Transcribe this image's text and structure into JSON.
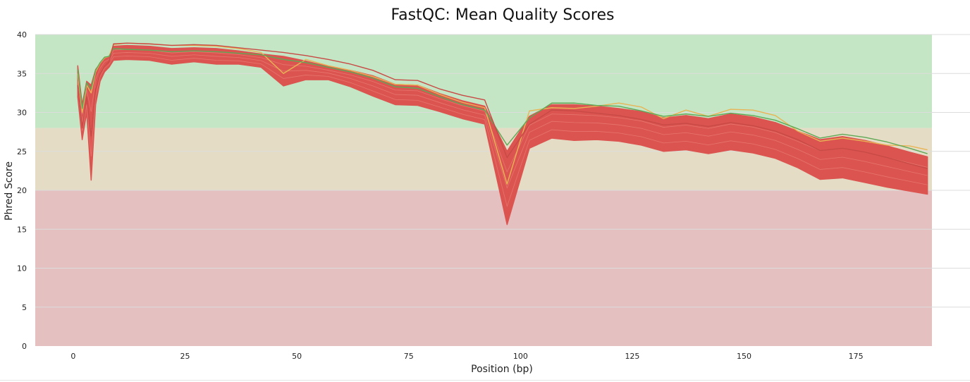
{
  "chart_data": {
    "type": "line",
    "title": "FastQC: Mean Quality Scores",
    "xlabel": "Position (bp)",
    "ylabel": "Phred Score",
    "xlim": [
      -8.5,
      192
    ],
    "ylim": [
      0,
      40
    ],
    "xticks": [
      0,
      25,
      50,
      75,
      100,
      125,
      150,
      175
    ],
    "yticks": [
      0,
      5,
      10,
      15,
      20,
      25,
      30,
      35,
      40
    ],
    "grid": "horizontal",
    "legend": "none",
    "bands": [
      {
        "from": 0,
        "to": 20,
        "color": "#e5c0c1"
      },
      {
        "from": 20,
        "to": 28,
        "color": "#e5dcc5"
      },
      {
        "from": 28,
        "to": 40,
        "color": "#c4e6c4"
      }
    ],
    "x": [
      1,
      2,
      3,
      4,
      5,
      6,
      7,
      8,
      9,
      12,
      17,
      22,
      27,
      32,
      37,
      42,
      47,
      52,
      57,
      62,
      67,
      72,
      77,
      82,
      87,
      92,
      97,
      102,
      107,
      112,
      117,
      122,
      127,
      132,
      137,
      142,
      147,
      152,
      157,
      162,
      167,
      172,
      177,
      182,
      187,
      191
    ],
    "envelope": {
      "color": "#db5450",
      "upper": [
        36.0,
        31.0,
        34.0,
        33.5,
        35.5,
        36.3,
        37.0,
        37.2,
        38.5,
        38.6,
        38.5,
        38.2,
        38.3,
        38.2,
        37.9,
        37.5,
        37.2,
        36.6,
        35.9,
        35.4,
        34.7,
        33.6,
        33.5,
        32.4,
        31.5,
        30.8,
        25.0,
        29.5,
        31.0,
        31.0,
        30.8,
        30.5,
        30.1,
        29.3,
        29.6,
        29.2,
        29.8,
        29.4,
        28.7,
        27.6,
        26.5,
        26.9,
        26.4,
        25.7,
        24.9,
        24.3
      ],
      "lower": [
        32.0,
        26.5,
        30.0,
        21.3,
        31.0,
        34.0,
        35.2,
        35.8,
        36.7,
        36.8,
        36.7,
        36.2,
        36.5,
        36.2,
        36.2,
        35.8,
        33.4,
        34.2,
        34.2,
        33.3,
        32.1,
        31.0,
        30.9,
        30.1,
        29.2,
        28.5,
        15.6,
        25.4,
        26.7,
        26.4,
        26.5,
        26.3,
        25.8,
        25.0,
        25.2,
        24.7,
        25.2,
        24.8,
        24.1,
        22.9,
        21.4,
        21.6,
        21.0,
        20.4,
        19.9,
        19.5
      ]
    },
    "series": [
      {
        "color": "#e8b455",
        "values": [
          35.0,
          30.0,
          33.5,
          32.5,
          35.2,
          36.3,
          37.0,
          37.2,
          38.7,
          38.9,
          38.8,
          38.6,
          38.6,
          38.5,
          38.2,
          37.7,
          35.0,
          36.8,
          36.0,
          35.4,
          34.6,
          33.6,
          33.5,
          32.3,
          31.3,
          30.6,
          20.8,
          30.2,
          30.6,
          30.5,
          30.8,
          31.2,
          30.7,
          29.2,
          30.3,
          29.5,
          30.4,
          30.3,
          29.6,
          27.6,
          26.3,
          26.7,
          26.3,
          25.8,
          25.7,
          25.2
        ]
      },
      {
        "color": "#5fa956",
        "values": [
          35.5,
          30.5,
          33.8,
          33.0,
          35.4,
          36.4,
          37.1,
          37.2,
          38.2,
          38.1,
          38.0,
          37.8,
          37.9,
          37.8,
          37.6,
          37.4,
          36.8,
          36.4,
          35.8,
          35.2,
          34.4,
          33.3,
          33.1,
          32.0,
          31.0,
          30.3,
          25.8,
          29.3,
          31.2,
          31.2,
          30.9,
          30.8,
          30.2,
          29.5,
          29.8,
          29.5,
          29.9,
          29.6,
          29.0,
          27.9,
          26.7,
          27.2,
          26.8,
          26.2,
          25.4,
          24.7
        ]
      },
      {
        "color": "#c84a46",
        "values": [
          33.5,
          28.0,
          32.0,
          27.0,
          33.0,
          35.0,
          36.0,
          36.5,
          38.8,
          38.9,
          38.8,
          38.6,
          38.7,
          38.6,
          38.3,
          38.0,
          37.7,
          37.3,
          36.8,
          36.2,
          35.4,
          34.2,
          34.1,
          33.0,
          32.2,
          31.6,
          24.2,
          28.5,
          30.3,
          30.2,
          29.9,
          29.6,
          29.1,
          28.4,
          28.6,
          28.2,
          28.7,
          28.3,
          27.6,
          26.5,
          25.1,
          25.4,
          24.9,
          24.2,
          23.4,
          22.8
        ]
      }
    ]
  }
}
